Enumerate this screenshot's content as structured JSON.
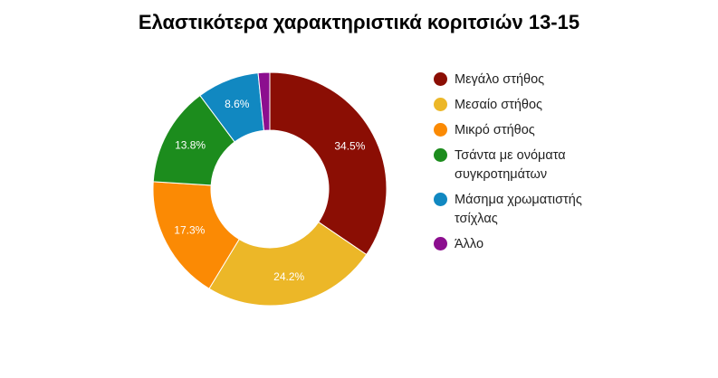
{
  "chart_data": {
    "type": "pie",
    "donut": true,
    "title": "Ελαστικότερα χαρακτηριστικά κοριτσιών 13-15",
    "legend_position": "right",
    "slices": [
      {
        "label": "Μεγάλο στήθος",
        "value": 34.5,
        "value_label": "34.5%",
        "color": "#8b0e04"
      },
      {
        "label": "Μεσαίο στήθος",
        "value": 24.2,
        "value_label": "24.2%",
        "color": "#ecb728"
      },
      {
        "label": "Μικρό στήθος",
        "value": 17.3,
        "value_label": "17.3%",
        "color": "#fb8a04"
      },
      {
        "label": "Τσάντα με ονόματα συγκροτημάτων",
        "value": 13.8,
        "value_label": "13.8%",
        "color": "#1c8c1d"
      },
      {
        "label": "Μάσημα χρωματιστής τσίχλας",
        "value": 8.6,
        "value_label": "8.6%",
        "color": "#1188c1"
      },
      {
        "label": "Άλλο",
        "value": 1.6,
        "value_label": "",
        "color": "#8c0e8f"
      }
    ]
  }
}
